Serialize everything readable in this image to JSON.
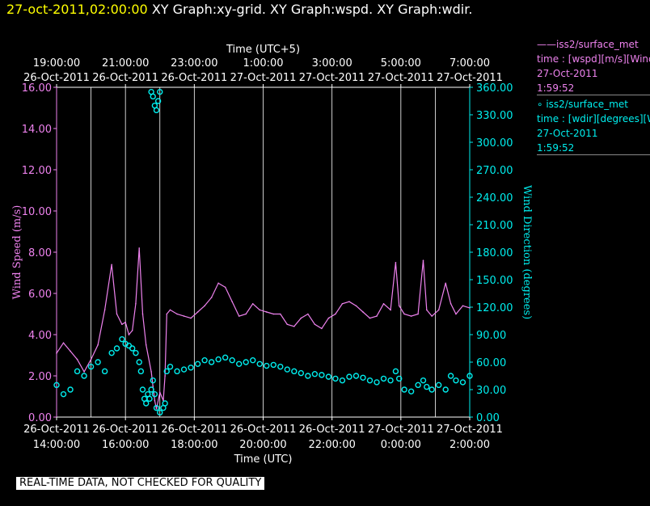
{
  "header": {
    "datetime": "27-oct-2011,02:00:00",
    "graphs": "XY Graph:xy-grid.  XY Graph:wspd.  XY Graph:wdir."
  },
  "legend": [
    {
      "line1": "——iss2/surface_met",
      "line2": "time : [wspd][m/s][Wind",
      "line3": "27-Oct-2011",
      "line4": "1:59:52"
    },
    {
      "line1": "∘ iss2/surface_met",
      "line2": "time : [wdir][degrees][W",
      "line3": "27-Oct-2011",
      "line4": "1:59:52"
    }
  ],
  "quality_note": "REAL-TIME DATA, NOT CHECKED FOR QUALITY",
  "colors": {
    "wspd": "#ee82ee",
    "wdir": "#00eeee",
    "date": "#ffff00",
    "grid": "#ffffff"
  },
  "chart_data": {
    "type": "line",
    "top_axis": {
      "title": "Time (UTC+5)",
      "ticks": [
        {
          "time": "19:00:00",
          "date": "26-Oct-2011"
        },
        {
          "time": "21:00:00",
          "date": "26-Oct-2011"
        },
        {
          "time": "23:00:00",
          "date": "26-Oct-2011"
        },
        {
          "time": "1:00:00",
          "date": "27-Oct-2011"
        },
        {
          "time": "3:00:00",
          "date": "27-Oct-2011"
        },
        {
          "time": "5:00:00",
          "date": "27-Oct-2011"
        },
        {
          "time": "7:00:00",
          "date": "27-Oct-2011"
        }
      ]
    },
    "bottom_axis": {
      "title": "Time (UTC)",
      "ticks": [
        {
          "date": "26-Oct-2011",
          "time": "14:00:00"
        },
        {
          "date": "26-Oct-2011",
          "time": "16:00:00"
        },
        {
          "date": "26-Oct-2011",
          "time": "18:00:00"
        },
        {
          "date": "26-Oct-2011",
          "time": "20:00:00"
        },
        {
          "date": "26-Oct-2011",
          "time": "22:00:00"
        },
        {
          "date": "27-Oct-2011",
          "time": "0:00:00"
        },
        {
          "date": "27-Oct-2011",
          "time": "2:00:00"
        }
      ],
      "range_hours_utc": [
        14,
        26
      ]
    },
    "left_axis": {
      "title": "Wind Speed (m/s)",
      "ylim": [
        0,
        16
      ],
      "ticks": [
        "0.00",
        "2.00",
        "4.00",
        "6.00",
        "8.00",
        "10.00",
        "12.00",
        "14.00",
        "16.00"
      ]
    },
    "right_axis": {
      "title": "Wind Direction (degrees)",
      "ylim": [
        0,
        360
      ],
      "ticks": [
        "0.00",
        "30.00",
        "60.00",
        "90.00",
        "120.00",
        "150.00",
        "180.00",
        "210.00",
        "240.00",
        "270.00",
        "300.00",
        "330.00",
        "360.00"
      ]
    },
    "vertical_grid_hours_utc": [
      15,
      16,
      17,
      18,
      20,
      22,
      24,
      25,
      26
    ],
    "series": [
      {
        "name": "iss2/surface_met wspd",
        "style": "line",
        "axis": "left",
        "x": [
          14.0,
          14.2,
          14.4,
          14.6,
          14.8,
          15.0,
          15.2,
          15.4,
          15.6,
          15.75,
          15.9,
          16.0,
          16.1,
          16.2,
          16.3,
          16.4,
          16.5,
          16.6,
          16.75,
          16.8,
          16.85,
          16.9,
          17.0,
          17.1,
          17.15,
          17.2,
          17.3,
          17.5,
          17.7,
          17.9,
          18.1,
          18.3,
          18.5,
          18.7,
          18.9,
          19.1,
          19.3,
          19.5,
          19.7,
          19.9,
          20.1,
          20.3,
          20.5,
          20.7,
          20.9,
          21.1,
          21.3,
          21.5,
          21.7,
          21.9,
          22.1,
          22.3,
          22.5,
          22.7,
          22.9,
          23.1,
          23.3,
          23.5,
          23.7,
          23.85,
          23.95,
          24.1,
          24.3,
          24.5,
          24.65,
          24.75,
          24.9,
          25.1,
          25.3,
          25.45,
          25.6,
          25.8,
          26.0
        ],
        "y": [
          3.1,
          3.6,
          3.2,
          2.8,
          2.2,
          2.8,
          3.5,
          5.2,
          7.4,
          5.0,
          4.5,
          4.6,
          4.0,
          4.2,
          5.5,
          8.2,
          5.0,
          3.5,
          2.2,
          1.5,
          0.8,
          0.4,
          1.2,
          0.8,
          2.0,
          5.0,
          5.2,
          5.0,
          4.9,
          4.8,
          5.1,
          5.4,
          5.8,
          6.5,
          6.3,
          5.6,
          4.9,
          5.0,
          5.5,
          5.2,
          5.1,
          5.0,
          5.0,
          4.5,
          4.4,
          4.8,
          5.0,
          4.5,
          4.3,
          4.8,
          5.0,
          5.5,
          5.6,
          5.4,
          5.1,
          4.8,
          4.9,
          5.5,
          5.2,
          7.5,
          5.4,
          5.0,
          4.9,
          5.0,
          7.6,
          5.2,
          4.9,
          5.2,
          6.5,
          5.5,
          5.0,
          5.4,
          5.3
        ]
      },
      {
        "name": "iss2/surface_met wdir",
        "style": "markers",
        "axis": "right",
        "x": [
          14.0,
          14.2,
          14.4,
          14.6,
          14.8,
          15.0,
          15.2,
          15.4,
          15.6,
          15.75,
          15.9,
          16.0,
          16.1,
          16.2,
          16.3,
          16.4,
          16.45,
          16.5,
          16.55,
          16.6,
          16.65,
          16.7,
          16.75,
          16.8,
          16.85,
          16.9,
          17.0,
          17.1,
          17.15,
          17.2,
          17.3,
          17.5,
          17.7,
          17.9,
          18.1,
          18.3,
          18.5,
          18.7,
          18.9,
          19.1,
          19.3,
          19.5,
          19.7,
          19.9,
          20.1,
          20.3,
          20.5,
          20.7,
          20.9,
          21.1,
          21.3,
          21.5,
          21.7,
          21.9,
          22.1,
          22.3,
          22.5,
          22.7,
          22.9,
          23.1,
          23.3,
          23.5,
          23.7,
          23.85,
          23.95,
          24.1,
          24.3,
          24.5,
          24.65,
          24.75,
          24.9,
          25.1,
          25.3,
          25.45,
          25.6,
          25.8,
          26.0
        ],
        "y": [
          35,
          25,
          30,
          50,
          45,
          55,
          60,
          50,
          70,
          75,
          85,
          80,
          78,
          75,
          70,
          60,
          50,
          30,
          20,
          15,
          25,
          20,
          30,
          40,
          25,
          10,
          5,
          10,
          15,
          50,
          55,
          50,
          52,
          54,
          58,
          62,
          60,
          63,
          65,
          62,
          58,
          60,
          62,
          58,
          56,
          57,
          55,
          52,
          50,
          48,
          45,
          47,
          46,
          44,
          42,
          40,
          44,
          45,
          43,
          40,
          38,
          42,
          40,
          50,
          42,
          30,
          28,
          35,
          40,
          33,
          30,
          35,
          30,
          45,
          40,
          38,
          45
        ]
      },
      {
        "name": "iss2/surface_met wdir (wrapped)",
        "style": "markers",
        "axis": "right",
        "x": [
          16.75,
          16.8,
          16.85,
          16.9,
          16.95,
          17.0
        ],
        "y": [
          355,
          350,
          340,
          335,
          345,
          355
        ]
      }
    ]
  }
}
